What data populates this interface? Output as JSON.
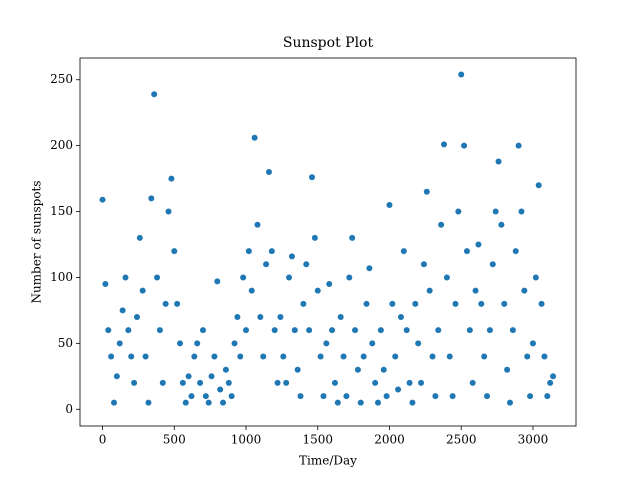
{
  "chart_data": {
    "type": "scatter",
    "title": "Sunspot Plot",
    "xlabel": "Time/Day",
    "ylabel": "Number of sunspots",
    "color": "#1f77b4",
    "xlim": [
      -157,
      3300
    ],
    "ylim": [
      -12.7,
      266.5
    ],
    "xticks": [
      0,
      500,
      1000,
      1500,
      2000,
      2500,
      3000
    ],
    "yticks": [
      0,
      50,
      100,
      150,
      200,
      250
    ],
    "x": [
      0,
      20,
      40,
      60,
      80,
      100,
      120,
      140,
      160,
      180,
      200,
      220,
      240,
      260,
      280,
      300,
      320,
      340,
      360,
      380,
      400,
      420,
      440,
      460,
      480,
      500,
      520,
      540,
      560,
      580,
      600,
      620,
      640,
      660,
      680,
      700,
      720,
      740,
      760,
      780,
      800,
      820,
      840,
      860,
      880,
      900,
      920,
      940,
      960,
      980,
      1000,
      1020,
      1040,
      1060,
      1080,
      1100,
      1120,
      1140,
      1160,
      1180,
      1200,
      1220,
      1240,
      1260,
      1280,
      1300,
      1320,
      1340,
      1360,
      1380,
      1400,
      1420,
      1440,
      1460,
      1480,
      1500,
      1520,
      1540,
      1560,
      1580,
      1600,
      1620,
      1640,
      1660,
      1680,
      1700,
      1720,
      1740,
      1760,
      1780,
      1800,
      1820,
      1840,
      1860,
      1880,
      1900,
      1920,
      1940,
      1960,
      1980,
      2000,
      2020,
      2040,
      2060,
      2080,
      2100,
      2120,
      2140,
      2160,
      2180,
      2200,
      2220,
      2240,
      2260,
      2280,
      2300,
      2320,
      2340,
      2360,
      2380,
      2400,
      2420,
      2440,
      2460,
      2480,
      2500,
      2520,
      2540,
      2560,
      2580,
      2600,
      2620,
      2640,
      2660,
      2680,
      2700,
      2720,
      2740,
      2760,
      2780,
      2800,
      2820,
      2840,
      2860,
      2880,
      2900,
      2920,
      2940,
      2960,
      2980,
      3000,
      3020,
      3040,
      3060,
      3080,
      3100,
      3120,
      3140
    ],
    "values": [
      159,
      95,
      60,
      40,
      5,
      25,
      50,
      75,
      100,
      60,
      40,
      20,
      70,
      130,
      90,
      40,
      5,
      160,
      239,
      100,
      60,
      20,
      80,
      150,
      175,
      120,
      80,
      50,
      20,
      5,
      25,
      10,
      40,
      50,
      20,
      60,
      10,
      5,
      25,
      40,
      97,
      15,
      5,
      30,
      20,
      10,
      50,
      70,
      40,
      100,
      60,
      120,
      90,
      206,
      140,
      70,
      40,
      110,
      180,
      120,
      60,
      20,
      70,
      40,
      20,
      100,
      116,
      60,
      30,
      10,
      80,
      110,
      60,
      176,
      130,
      90,
      40,
      10,
      50,
      95,
      60,
      20,
      5,
      70,
      40,
      10,
      100,
      130,
      60,
      30,
      5,
      40,
      80,
      107,
      50,
      20,
      5,
      60,
      30,
      10,
      155,
      80,
      40,
      15,
      70,
      120,
      60,
      20,
      5,
      80,
      50,
      20,
      110,
      165,
      90,
      40,
      10,
      60,
      140,
      201,
      100,
      40,
      10,
      80,
      150,
      254,
      200,
      120,
      60,
      20,
      90,
      125,
      80,
      40,
      10,
      60,
      110,
      150,
      188,
      140,
      80,
      30,
      5,
      60,
      120,
      200,
      150,
      90,
      40,
      10,
      50,
      100,
      170,
      80,
      40,
      10,
      20,
      25
    ]
  }
}
